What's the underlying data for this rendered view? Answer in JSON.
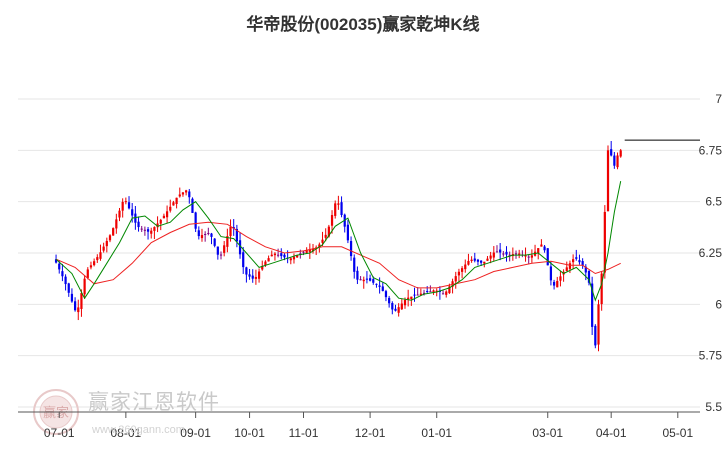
{
  "chart_data": {
    "type": "candlestick",
    "title": "华帝股份(002035)赢家乾坤K线",
    "ylim": [
      5.5,
      7.0
    ],
    "y_ticks": [
      7,
      6.75,
      6.5,
      6.25,
      6,
      5.75,
      5.5
    ],
    "y_tick_labels": [
      "7",
      "6.75",
      "6.5",
      "6.25",
      "6",
      "5.75",
      "5.5"
    ],
    "x_ticks": [
      {
        "label": "07-01",
        "x": 1
      },
      {
        "label": "08-01",
        "x": 22
      },
      {
        "label": "09-01",
        "x": 44
      },
      {
        "label": "10-01",
        "x": 61
      },
      {
        "label": "11-01",
        "x": 78
      },
      {
        "label": "12-01",
        "x": 99
      },
      {
        "label": "01-01",
        "x": 120
      },
      {
        "label": "03-01",
        "x": 155
      },
      {
        "label": "04-01",
        "x": 175
      },
      {
        "label": "05-01",
        "x": 196
      }
    ],
    "x_range": [
      -12,
      203
    ],
    "colors": {
      "up": "#ee0000",
      "down": "#0000ee",
      "neutral": "#800080",
      "ma_short": "#008800",
      "ma_long": "#ee2222"
    },
    "last_price": 6.8,
    "price_path": [
      [
        0,
        6.22
      ],
      [
        3,
        6.12
      ],
      [
        7,
        5.95
      ],
      [
        10,
        6.16
      ],
      [
        14,
        6.24
      ],
      [
        18,
        6.35
      ],
      [
        22,
        6.52
      ],
      [
        26,
        6.38
      ],
      [
        30,
        6.35
      ],
      [
        34,
        6.42
      ],
      [
        39,
        6.53
      ],
      [
        42,
        6.56
      ],
      [
        45,
        6.33
      ],
      [
        49,
        6.35
      ],
      [
        52,
        6.22
      ],
      [
        56,
        6.4
      ],
      [
        60,
        6.15
      ],
      [
        63,
        6.12
      ],
      [
        66,
        6.2
      ],
      [
        69,
        6.25
      ],
      [
        74,
        6.22
      ],
      [
        79,
        6.26
      ],
      [
        83,
        6.28
      ],
      [
        86,
        6.35
      ],
      [
        89,
        6.52
      ],
      [
        92,
        6.35
      ],
      [
        95,
        6.12
      ],
      [
        99,
        6.12
      ],
      [
        103,
        6.08
      ],
      [
        107,
        5.96
      ],
      [
        111,
        6.03
      ],
      [
        115,
        6.05
      ],
      [
        120,
        6.07
      ],
      [
        123,
        6.05
      ],
      [
        127,
        6.15
      ],
      [
        131,
        6.22
      ],
      [
        135,
        6.2
      ],
      [
        139,
        6.26
      ],
      [
        143,
        6.24
      ],
      [
        146,
        6.25
      ],
      [
        150,
        6.23
      ],
      [
        154,
        6.3
      ],
      [
        157,
        6.08
      ],
      [
        161,
        6.17
      ],
      [
        164,
        6.23
      ],
      [
        167,
        6.18
      ],
      [
        169,
        6.08
      ],
      [
        170,
        5.7
      ],
      [
        172,
        6.1
      ],
      [
        173,
        6.2
      ],
      [
        174,
        6.7
      ],
      [
        175,
        6.8
      ],
      [
        176,
        6.65
      ],
      [
        178,
        6.75
      ]
    ],
    "ma_short_path": [
      [
        0,
        6.22
      ],
      [
        5,
        6.15
      ],
      [
        9,
        6.03
      ],
      [
        12,
        6.1
      ],
      [
        16,
        6.2
      ],
      [
        20,
        6.3
      ],
      [
        24,
        6.42
      ],
      [
        28,
        6.43
      ],
      [
        32,
        6.38
      ],
      [
        36,
        6.4
      ],
      [
        40,
        6.46
      ],
      [
        44,
        6.5
      ],
      [
        48,
        6.42
      ],
      [
        52,
        6.33
      ],
      [
        56,
        6.32
      ],
      [
        60,
        6.25
      ],
      [
        64,
        6.18
      ],
      [
        68,
        6.2
      ],
      [
        72,
        6.22
      ],
      [
        76,
        6.24
      ],
      [
        80,
        6.25
      ],
      [
        84,
        6.29
      ],
      [
        88,
        6.38
      ],
      [
        92,
        6.42
      ],
      [
        96,
        6.25
      ],
      [
        100,
        6.13
      ],
      [
        104,
        6.1
      ],
      [
        108,
        6.03
      ],
      [
        112,
        6.02
      ],
      [
        116,
        6.05
      ],
      [
        120,
        6.06
      ],
      [
        124,
        6.08
      ],
      [
        128,
        6.12
      ],
      [
        132,
        6.18
      ],
      [
        136,
        6.2
      ],
      [
        140,
        6.22
      ],
      [
        144,
        6.24
      ],
      [
        148,
        6.24
      ],
      [
        152,
        6.25
      ],
      [
        156,
        6.2
      ],
      [
        160,
        6.15
      ],
      [
        164,
        6.18
      ],
      [
        168,
        6.12
      ],
      [
        170,
        6.02
      ],
      [
        172,
        6.1
      ],
      [
        174,
        6.25
      ],
      [
        176,
        6.45
      ],
      [
        178,
        6.6
      ]
    ],
    "ma_long_path": [
      [
        0,
        6.22
      ],
      [
        6,
        6.18
      ],
      [
        12,
        6.1
      ],
      [
        18,
        6.12
      ],
      [
        24,
        6.2
      ],
      [
        30,
        6.3
      ],
      [
        36,
        6.35
      ],
      [
        42,
        6.39
      ],
      [
        48,
        6.4
      ],
      [
        54,
        6.39
      ],
      [
        60,
        6.33
      ],
      [
        66,
        6.28
      ],
      [
        72,
        6.25
      ],
      [
        78,
        6.26
      ],
      [
        84,
        6.28
      ],
      [
        90,
        6.28
      ],
      [
        96,
        6.24
      ],
      [
        102,
        6.2
      ],
      [
        108,
        6.12
      ],
      [
        114,
        6.08
      ],
      [
        120,
        6.08
      ],
      [
        126,
        6.1
      ],
      [
        132,
        6.12
      ],
      [
        138,
        6.16
      ],
      [
        144,
        6.18
      ],
      [
        150,
        6.2
      ],
      [
        156,
        6.21
      ],
      [
        162,
        6.19
      ],
      [
        166,
        6.19
      ],
      [
        170,
        6.15
      ],
      [
        174,
        6.17
      ],
      [
        178,
        6.2
      ]
    ]
  },
  "watermark": {
    "brand": "赢家江恩软件",
    "url": "www.360gann.com",
    "logo_text": "赢家"
  }
}
